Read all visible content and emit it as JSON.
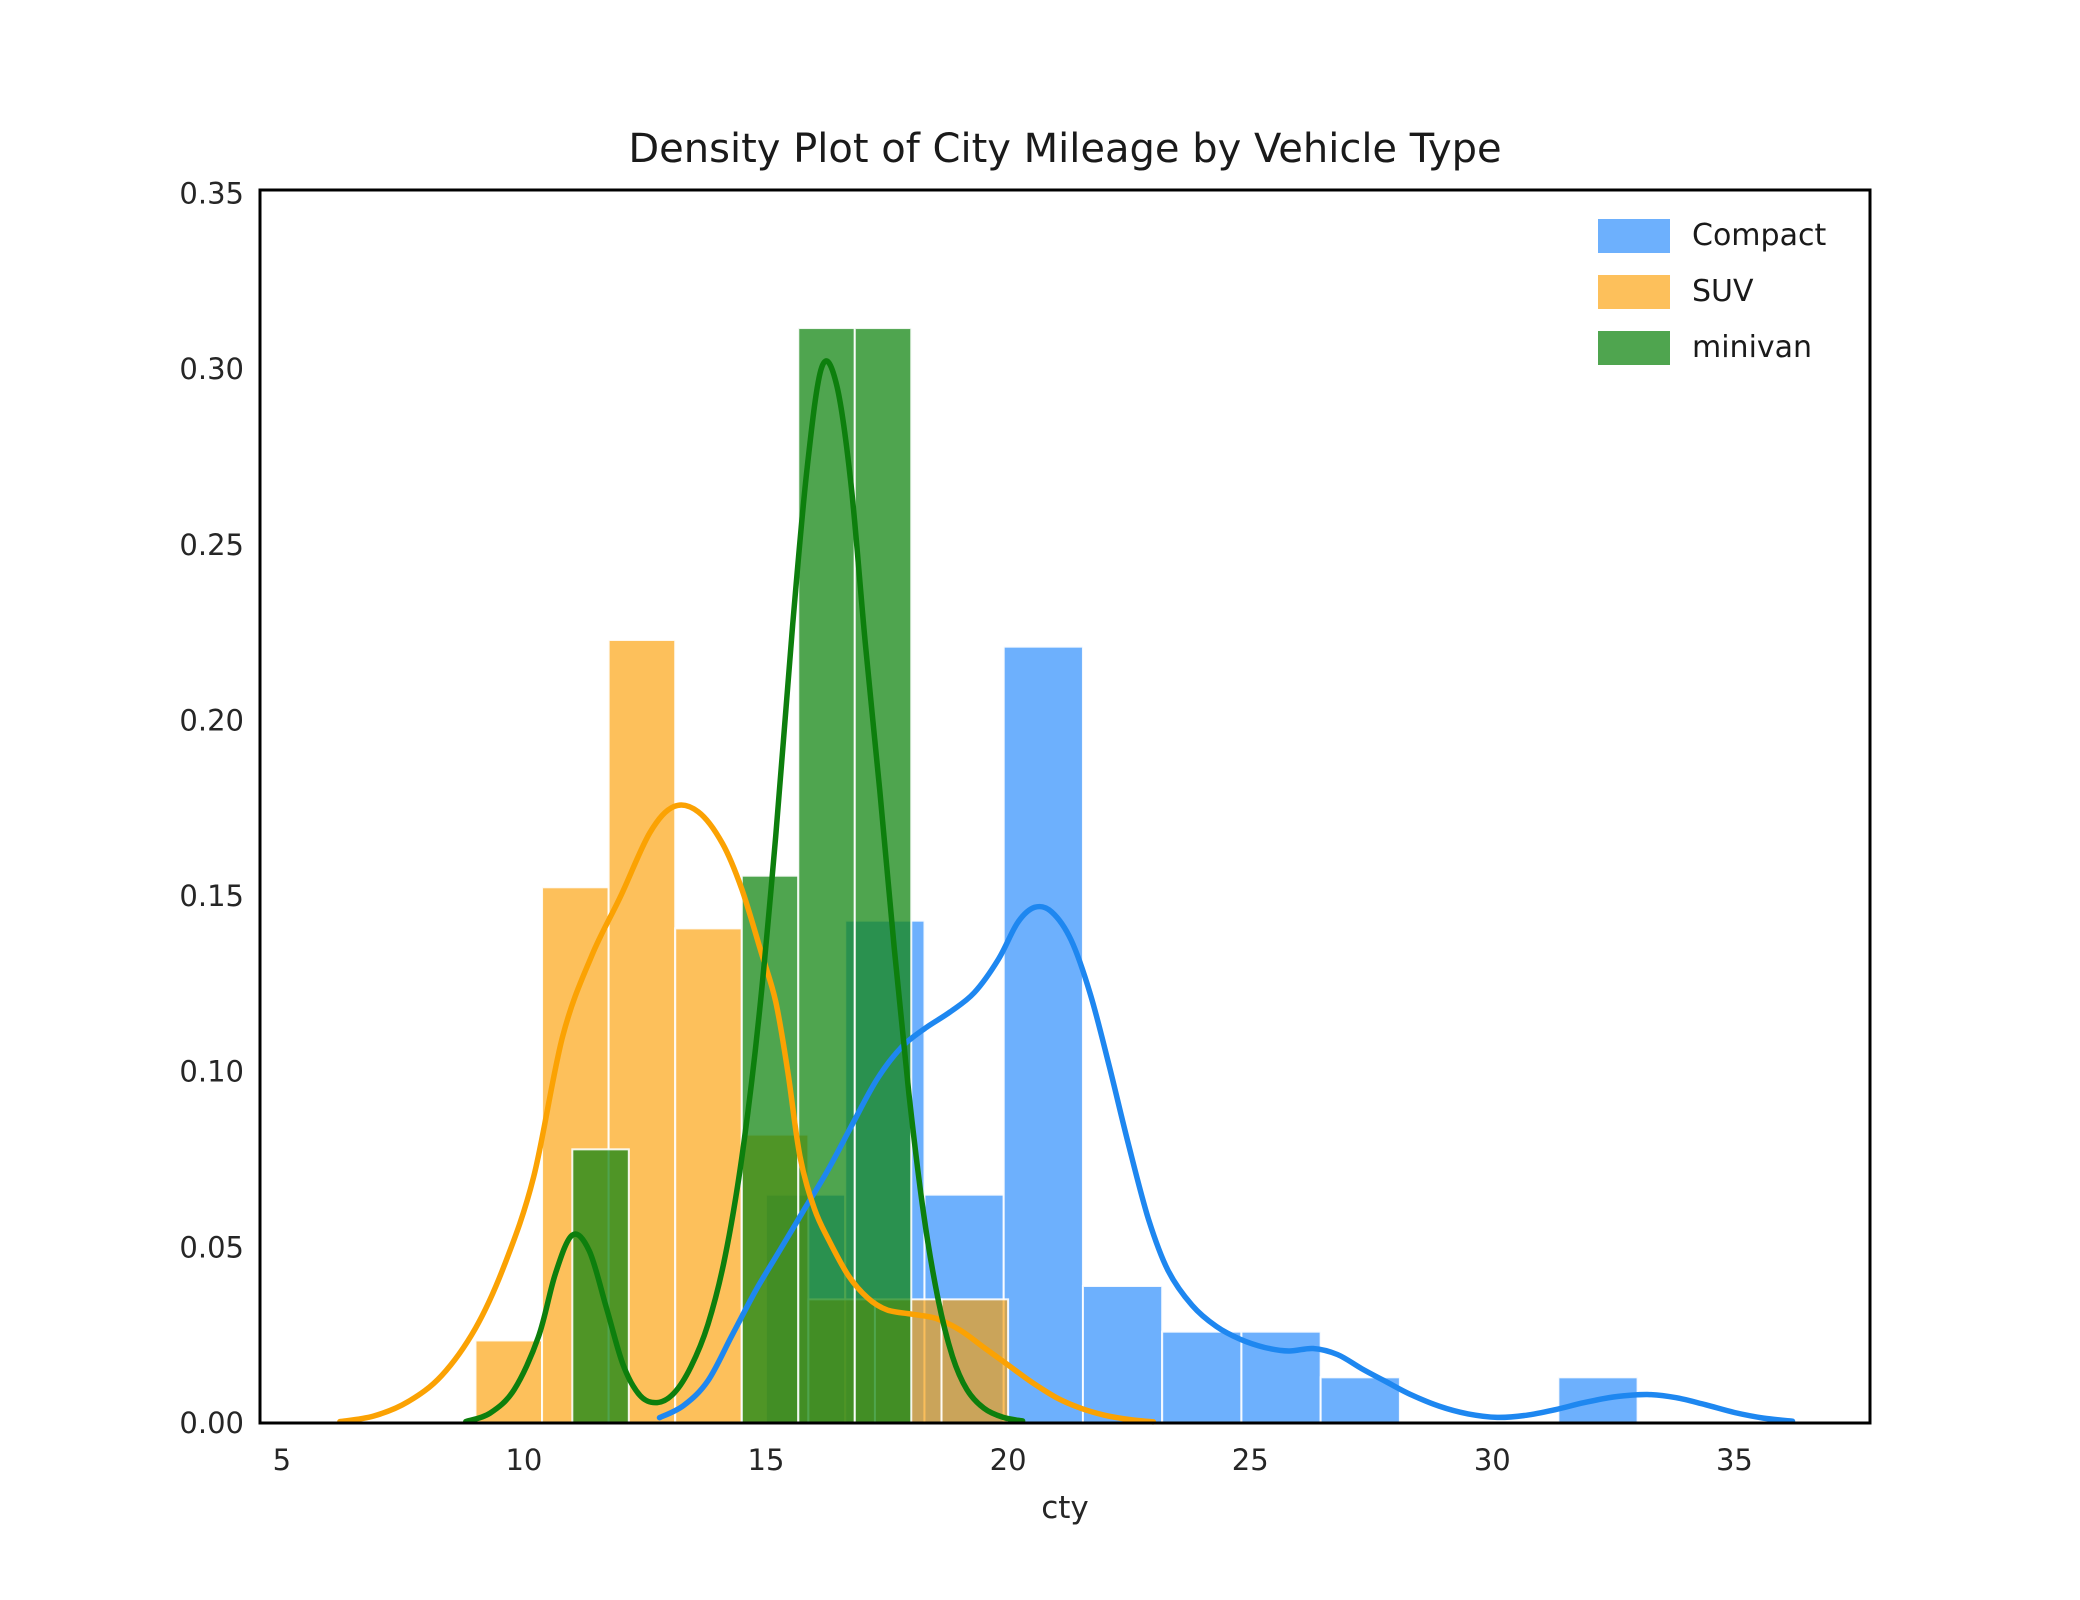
{
  "title": "Density Plot of City Mileage by Vehicle Type",
  "xlabel": "cty",
  "legend": {
    "position": "upper right",
    "items": [
      {
        "label": "Compact",
        "color": "rgba(30,134,252,0.65)"
      },
      {
        "label": "SUV",
        "color": "rgba(252,158,3,0.65)"
      },
      {
        "label": "minivan",
        "color": "rgba(20,135,20,0.75)"
      }
    ]
  },
  "chart_data": {
    "type": "histogram+kde",
    "title": "Density Plot of City Mileage by Vehicle Type",
    "xlabel": "cty",
    "ylabel": "",
    "xlim": [
      4.55,
      37.8
    ],
    "ylim": [
      0,
      0.351
    ],
    "xticks": [
      5,
      10,
      15,
      20,
      25,
      30,
      35
    ],
    "ytick_labels": [
      "0.00",
      "0.05",
      "0.10",
      "0.15",
      "0.20",
      "0.25",
      "0.30",
      "0.35"
    ],
    "ytick_values": [
      0,
      0.05,
      0.1,
      0.15,
      0.2,
      0.25,
      0.3,
      0.35
    ],
    "grid": false,
    "frame": "full-box",
    "series": [
      {
        "name": "Compact",
        "bar_fill": "rgba(30,134,252,0.65)",
        "line_color": "#1e87f0",
        "bins_start": 15.0,
        "bin_width": 1.6364,
        "bin_heights": [
          0.065,
          0.143,
          0.065,
          0.221,
          0.039,
          0.026,
          0.026,
          0.013,
          0,
          0,
          0.013
        ],
        "kde": [
          [
            12.8,
            0.0015
          ],
          [
            13.3,
            0.005
          ],
          [
            13.8,
            0.012
          ],
          [
            14.3,
            0.025
          ],
          [
            14.8,
            0.038
          ],
          [
            15.3,
            0.0495
          ],
          [
            15.8,
            0.061
          ],
          [
            16.3,
            0.0725
          ],
          [
            16.8,
            0.0855
          ],
          [
            17.3,
            0.098
          ],
          [
            17.8,
            0.107
          ],
          [
            18.3,
            0.1125
          ],
          [
            18.8,
            0.117
          ],
          [
            19.3,
            0.1225
          ],
          [
            19.8,
            0.132
          ],
          [
            20.2,
            0.1425
          ],
          [
            20.55,
            0.1468
          ],
          [
            20.9,
            0.1455
          ],
          [
            21.3,
            0.1375
          ],
          [
            21.7,
            0.122
          ],
          [
            22.1,
            0.101
          ],
          [
            22.5,
            0.0785
          ],
          [
            22.9,
            0.058
          ],
          [
            23.3,
            0.0435
          ],
          [
            23.8,
            0.0335
          ],
          [
            24.3,
            0.0275
          ],
          [
            24.8,
            0.0238
          ],
          [
            25.3,
            0.0215
          ],
          [
            25.8,
            0.0205
          ],
          [
            26.3,
            0.0212
          ],
          [
            26.8,
            0.0195
          ],
          [
            27.3,
            0.0155
          ],
          [
            27.8,
            0.0118
          ],
          [
            28.3,
            0.0082
          ],
          [
            28.9,
            0.0048
          ],
          [
            29.5,
            0.0026
          ],
          [
            30.1,
            0.0016
          ],
          [
            30.7,
            0.0022
          ],
          [
            31.3,
            0.0038
          ],
          [
            31.9,
            0.0058
          ],
          [
            32.5,
            0.0074
          ],
          [
            33.2,
            0.0081
          ],
          [
            33.8,
            0.0072
          ],
          [
            34.4,
            0.0052
          ],
          [
            35.0,
            0.003
          ],
          [
            35.6,
            0.0014
          ],
          [
            36.2,
            0.0005
          ]
        ]
      },
      {
        "name": "SUV",
        "bar_fill": "rgba(252,158,3,0.65)",
        "line_color": "#fba203",
        "bins_start": 9.0,
        "bin_width": 1.375,
        "bin_heights": [
          0.0235,
          0.1525,
          0.2229,
          0.1408,
          0.0821,
          0.0352,
          0.0352,
          0.0352
        ],
        "kde": [
          [
            6.2,
            0.0004
          ],
          [
            6.9,
            0.002
          ],
          [
            7.6,
            0.006
          ],
          [
            8.3,
            0.0135
          ],
          [
            9.0,
            0.027
          ],
          [
            9.6,
            0.045
          ],
          [
            10.2,
            0.07
          ],
          [
            10.8,
            0.11
          ],
          [
            11.4,
            0.133
          ],
          [
            12.0,
            0.15
          ],
          [
            12.6,
            0.168
          ],
          [
            13.1,
            0.1755
          ],
          [
            13.6,
            0.174
          ],
          [
            14.1,
            0.165
          ],
          [
            14.5,
            0.152
          ],
          [
            14.9,
            0.134
          ],
          [
            15.2,
            0.12
          ],
          [
            15.45,
            0.1
          ],
          [
            15.7,
            0.076
          ],
          [
            16.0,
            0.061
          ],
          [
            16.3,
            0.052
          ],
          [
            16.7,
            0.042
          ],
          [
            17.1,
            0.0356
          ],
          [
            17.5,
            0.0322
          ],
          [
            18.0,
            0.031
          ],
          [
            18.5,
            0.0298
          ],
          [
            19.0,
            0.0265
          ],
          [
            19.5,
            0.0215
          ],
          [
            20.0,
            0.0165
          ],
          [
            20.5,
            0.0115
          ],
          [
            21.0,
            0.0072
          ],
          [
            21.5,
            0.0042
          ],
          [
            22.0,
            0.0022
          ],
          [
            22.5,
            0.001
          ],
          [
            23.0,
            0.0003
          ]
        ]
      },
      {
        "name": "minivan",
        "bar_fill": "rgba(20,135,20,0.75)",
        "line_color": "#0d7f0d",
        "bins_start": 11.0,
        "bin_width": 1.1667,
        "bin_heights": [
          0.0779,
          0,
          0,
          0.1558,
          0.3117,
          0.3117
        ],
        "kde": [
          [
            8.8,
            0.0004
          ],
          [
            9.3,
            0.0028
          ],
          [
            9.8,
            0.0095
          ],
          [
            10.3,
            0.0245
          ],
          [
            10.65,
            0.0425
          ],
          [
            11.0,
            0.0535
          ],
          [
            11.35,
            0.049
          ],
          [
            11.7,
            0.033
          ],
          [
            12.05,
            0.0165
          ],
          [
            12.4,
            0.0078
          ],
          [
            12.75,
            0.0058
          ],
          [
            13.1,
            0.0085
          ],
          [
            13.45,
            0.016
          ],
          [
            13.8,
            0.028
          ],
          [
            14.15,
            0.047
          ],
          [
            14.5,
            0.0755
          ],
          [
            14.85,
            0.115
          ],
          [
            15.2,
            0.167
          ],
          [
            15.55,
            0.227
          ],
          [
            15.85,
            0.272
          ],
          [
            16.15,
            0.3005
          ],
          [
            16.45,
            0.296
          ],
          [
            16.75,
            0.268
          ],
          [
            17.05,
            0.222
          ],
          [
            17.35,
            0.18
          ],
          [
            17.65,
            0.135
          ],
          [
            17.95,
            0.094
          ],
          [
            18.25,
            0.06
          ],
          [
            18.55,
            0.0355
          ],
          [
            18.85,
            0.019
          ],
          [
            19.15,
            0.0095
          ],
          [
            19.5,
            0.0042
          ],
          [
            19.9,
            0.0016
          ],
          [
            20.3,
            0.0006
          ]
        ]
      }
    ]
  },
  "style": {
    "spine_color": "#000000",
    "tick_label_color": "#262626",
    "title_color": "#1a1a1a",
    "bar_edge_color": "rgba(255,255,255,0.9)"
  }
}
